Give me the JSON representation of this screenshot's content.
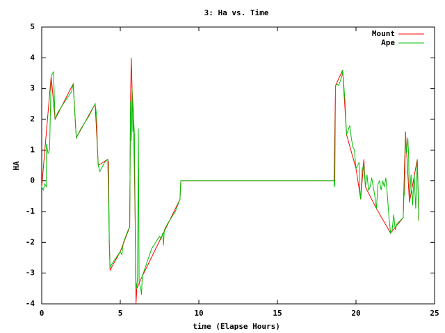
{
  "chart_data": {
    "type": "line",
    "title": "3: Ha vs. Time",
    "x_label": "time (Elapse Hours)",
    "y_label": "HA",
    "xlim": [
      0,
      25
    ],
    "xticks": [
      0,
      5,
      10,
      15,
      20,
      25
    ],
    "ylim": [
      -4,
      5
    ],
    "yticks": [
      -4,
      -3,
      -2,
      -1,
      0,
      1,
      2,
      3,
      4,
      5
    ],
    "grid": false,
    "legend": "top-right",
    "series": [
      {
        "name": "Mount",
        "color": "#ff0000",
        "x": [
          0,
          0.6,
          0.85,
          2.0,
          2.2,
          3.4,
          3.6,
          4.2,
          4.25,
          4.3,
          4.35,
          5.0,
          5.6,
          5.65,
          5.7,
          5.75,
          5.85,
          5.95,
          6.0,
          6.05,
          6.4,
          8.8,
          8.85,
          18.6,
          18.7,
          19.15,
          19.4,
          20.0,
          20.3,
          20.5,
          20.6,
          21.3,
          22.2,
          23.0,
          23.1,
          23.15,
          23.4,
          23.9,
          24.0
        ],
        "values": [
          -0.2,
          3.4,
          2.0,
          3.15,
          1.4,
          2.5,
          0.5,
          0.7,
          0.6,
          -2.0,
          -2.9,
          -2.3,
          -1.5,
          2.6,
          4.0,
          3.0,
          2.0,
          -1.4,
          -4.0,
          -3.5,
          -3.1,
          -0.6,
          0,
          0,
          3.1,
          3.6,
          1.5,
          0.4,
          -0.6,
          0.7,
          -0.2,
          -0.9,
          -1.7,
          -1.2,
          0.7,
          1.6,
          -0.7,
          0.7,
          -1.3
        ]
      },
      {
        "name": "Ape",
        "color": "#00c000",
        "x": [
          0,
          0.1,
          0.2,
          0.3,
          0.3,
          0.4,
          0.5,
          0.6,
          0.75,
          0.85,
          1.0,
          1.5,
          1.9,
          2.0,
          2.2,
          2.5,
          3.0,
          3.4,
          3.5,
          3.55,
          3.6,
          3.7,
          4.0,
          4.2,
          4.25,
          4.3,
          4.35,
          4.6,
          5.0,
          5.1,
          5.2,
          5.5,
          5.6,
          5.65,
          5.7,
          5.75,
          5.8,
          5.85,
          5.9,
          5.95,
          6.0,
          6.05,
          6.1,
          6.15,
          6.2,
          6.3,
          6.35,
          6.4,
          7.0,
          7.5,
          7.6,
          7.7,
          7.75,
          7.8,
          8.0,
          8.5,
          8.8,
          8.85,
          18.6,
          18.65,
          18.7,
          18.8,
          18.9,
          19.1,
          19.15,
          19.3,
          19.4,
          19.6,
          19.7,
          19.8,
          19.9,
          20.0,
          20.2,
          20.25,
          20.3,
          20.4,
          20.5,
          20.6,
          20.7,
          20.8,
          20.9,
          21.0,
          21.2,
          21.3,
          21.4,
          21.5,
          21.6,
          21.7,
          21.8,
          21.9,
          22.0,
          22.1,
          22.2,
          22.3,
          22.4,
          22.5,
          22.6,
          22.8,
          23.0,
          23.05,
          23.1,
          23.15,
          23.2,
          23.3,
          23.35,
          23.4,
          23.5,
          23.55,
          23.6,
          23.7,
          23.8,
          23.9,
          24.0
        ],
        "values": [
          -0.2,
          -0.3,
          -0.1,
          -0.2,
          1.2,
          0.9,
          1.0,
          3.4,
          3.55,
          2.0,
          2.2,
          2.6,
          2.9,
          3.15,
          1.4,
          1.7,
          2.1,
          2.5,
          2.1,
          1.0,
          0.5,
          0.3,
          0.6,
          0.7,
          -0.4,
          -2.0,
          -2.8,
          -2.6,
          -2.3,
          -2.4,
          -2.0,
          -1.6,
          -1.5,
          2.6,
          1.3,
          3.0,
          1.6,
          2.0,
          1.5,
          -1.4,
          -3.3,
          -3.5,
          -3.1,
          1.7,
          -3.3,
          -3.5,
          -3.7,
          -3.1,
          -2.2,
          -1.8,
          -1.9,
          -1.7,
          -2.1,
          -1.6,
          -1.4,
          -1.0,
          -0.6,
          0,
          0,
          -0.2,
          3.1,
          3.15,
          3.1,
          3.4,
          3.6,
          2.6,
          1.5,
          1.8,
          1.4,
          1.1,
          1.0,
          0.4,
          0.6,
          -0.3,
          -0.6,
          0.4,
          0.5,
          -0.2,
          0.2,
          -0.3,
          -0.2,
          0.1,
          -0.5,
          -0.9,
          -0.1,
          0,
          -0.3,
          0,
          -0.2,
          0.1,
          -0.5,
          -1.2,
          -1.7,
          -1.6,
          -1.1,
          -1.6,
          -1.4,
          -1.3,
          -1.2,
          -0.5,
          -0.4,
          1.6,
          0.9,
          1.4,
          0.8,
          -0.7,
          0.2,
          -0.2,
          -0.8,
          0.2,
          -0.9,
          0.7,
          -1.3
        ]
      }
    ]
  }
}
